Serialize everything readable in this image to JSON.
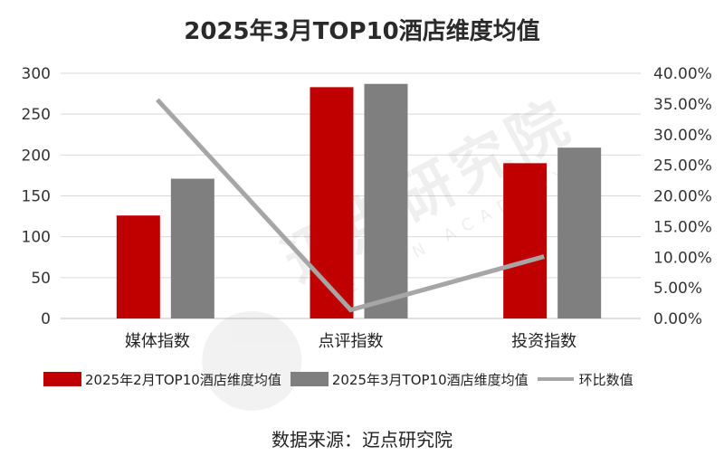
{
  "title": "2025年3月TOP10酒店维度均值",
  "source": "数据来源：迈点研究院",
  "watermark": {
    "name": "迈点研究院",
    "subtitle": "MEADIN ACADEMY"
  },
  "colors": {
    "series_feb": "#c00000",
    "series_mar": "#7f7f7f",
    "series_ratio": "#a6a6a6"
  },
  "chart_data": {
    "type": "bar",
    "categories": [
      "媒体指数",
      "点评指数",
      "投资指数"
    ],
    "series": [
      {
        "name": "2025年2月TOP10酒店维度均值",
        "type": "bar",
        "axis": "left",
        "values": [
          126,
          283,
          190
        ]
      },
      {
        "name": "2025年3月TOP10酒店维度均值",
        "type": "bar",
        "axis": "left",
        "values": [
          171,
          287,
          209
        ]
      },
      {
        "name": "环比数值",
        "type": "line",
        "axis": "right",
        "values": [
          35.7,
          1.4,
          10.1
        ]
      }
    ],
    "ylim": [
      0,
      300
    ],
    "yticks": [
      "0",
      "50",
      "100",
      "150",
      "200",
      "250",
      "300"
    ],
    "y2lim": [
      0,
      40
    ],
    "y2ticks": [
      "0.00%",
      "5.00%",
      "10.00%",
      "15.00%",
      "20.00%",
      "25.00%",
      "30.00%",
      "35.00%",
      "40.00%"
    ],
    "grid": true,
    "legend_position": "bottom"
  }
}
